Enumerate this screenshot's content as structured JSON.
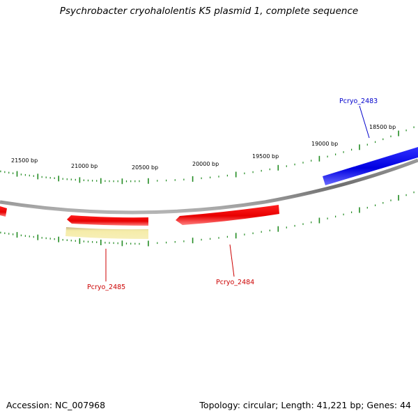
{
  "title": "Psychrobacter cryohalolentis K5 plasmid 1, complete sequence",
  "footer": {
    "accession": "Accession: NC_007968",
    "summary": "Topology: circular; Length: 41,221 bp; Genes: 44"
  },
  "colors": {
    "forward_gene": "#0000ee",
    "reverse_gene": "#ee0000",
    "other_feature": "#f0e6a0",
    "backbone": "#888888",
    "ticks": "#228b22",
    "forward_label": "#0000cc",
    "reverse_label": "#cc0000"
  },
  "axis": {
    "tick_labels": [
      "21500 bp",
      "21000 bp",
      "20500 bp",
      "20000 bp",
      "19500 bp",
      "19000 bp",
      "18500 bp"
    ]
  },
  "genes": [
    {
      "id": "Pcryo_2483",
      "strand": "forward"
    },
    {
      "id": "Pcryo_2484",
      "strand": "reverse"
    },
    {
      "id": "Pcryo_2485",
      "strand": "reverse"
    }
  ]
}
